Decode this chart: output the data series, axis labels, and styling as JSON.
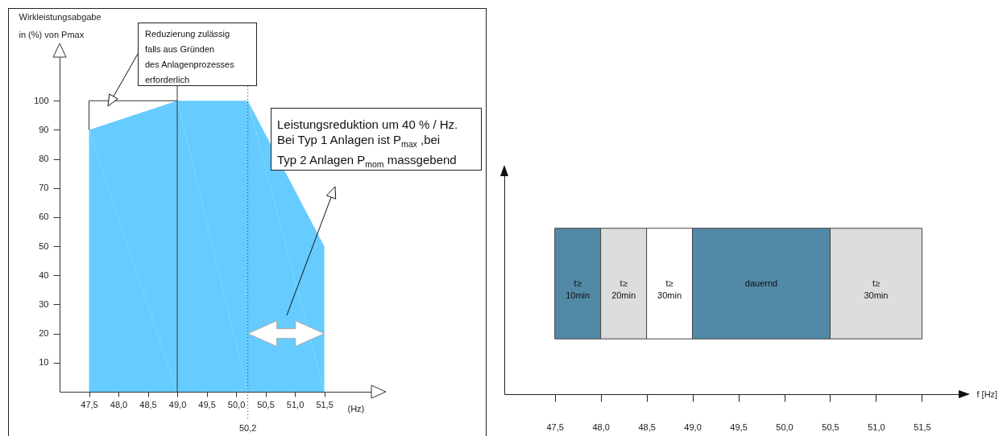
{
  "chart_data": [
    {
      "type": "area",
      "ylabel": "Wirkleistungsabgabe\nin (%) von Pmax",
      "xlabel": "(Hz)",
      "xlim": [
        47.0,
        52.3
      ],
      "ylim": [
        0,
        115
      ],
      "xticks": [
        {
          "value": 47.5,
          "label": "47,5"
        },
        {
          "value": 48.0,
          "label": "48,0"
        },
        {
          "value": 48.5,
          "label": "48,5"
        },
        {
          "value": 49.0,
          "label": "49,0"
        },
        {
          "value": 49.5,
          "label": "49,5"
        },
        {
          "value": 50.0,
          "label": "50,0"
        },
        {
          "value": 50.5,
          "label": "50,5"
        },
        {
          "value": 51.0,
          "label": "51,0"
        },
        {
          "value": 51.5,
          "label": "51,5"
        }
      ],
      "yticks": [
        10,
        20,
        30,
        40,
        50,
        60,
        70,
        80,
        90,
        100
      ],
      "series": [
        {
          "type": "area",
          "color": "#66ccff",
          "x": [
            47.5,
            49.0,
            50.2,
            51.5
          ],
          "values": [
            90,
            100,
            100,
            50
          ]
        },
        {
          "type": "line",
          "color": "#333333",
          "x": [
            47.5,
            47.5,
            49.0
          ],
          "values": [
            90,
            100,
            100
          ]
        }
      ],
      "ref_lines": [
        {
          "axis": "x",
          "value": 49.0,
          "color": "#333333",
          "line_style": "solid"
        },
        {
          "axis": "x",
          "value": 50.2,
          "label": "50,2",
          "color": "#333333",
          "line_style": "dotted"
        }
      ],
      "annotations": [
        "Reduzierung zulässig\nfalls aus Gründen\ndes Anlagenprozesses\nerforderlich",
        "Leistungsreduktion um 40 % / Hz.\nBei Typ 1 Anlagen ist P$_{max}$ ,bei\nTyp 2 Anlagen P$_{mom}$ massgebend"
      ],
      "grid": false
    },
    {
      "type": "bar",
      "orientation": "horizontal",
      "xlabel": "f [Hz]",
      "xlim": [
        46.95,
        51.9
      ],
      "xticks": [
        {
          "value": 47.5,
          "label": "47,5"
        },
        {
          "value": 48.0,
          "label": "48,0"
        },
        {
          "value": 48.5,
          "label": "48,5"
        },
        {
          "value": 49.0,
          "label": "49,0"
        },
        {
          "value": 49.5,
          "label": "49,5"
        },
        {
          "value": 50.0,
          "label": "50,0"
        },
        {
          "value": 50.5,
          "label": "50,5"
        },
        {
          "value": 51.0,
          "label": "51,0"
        },
        {
          "value": 51.5,
          "label": "51,5"
        }
      ],
      "categories": [
        null
      ],
      "tick_labels": "x",
      "series": [
        {
          "color": "#5289a6",
          "base": [
            47.5
          ],
          "values": [
            0.5
          ]
        },
        {
          "color": "#dddddd",
          "base": [
            48.0
          ],
          "values": [
            0.5
          ]
        },
        {
          "color": "#ffffff",
          "base": [
            48.5
          ],
          "values": [
            0.5
          ]
        },
        {
          "color": "#5289a6",
          "base": [
            49.0
          ],
          "values": [
            1.5
          ]
        },
        {
          "color": "#dddddd",
          "base": [
            50.5
          ],
          "values": [
            1.0
          ]
        }
      ],
      "annotations": [
        "t≥\n10min",
        "t≥\n20min",
        "t≥\n30min",
        "dauernd",
        "t≥\n30min"
      ],
      "grid": false
    }
  ]
}
